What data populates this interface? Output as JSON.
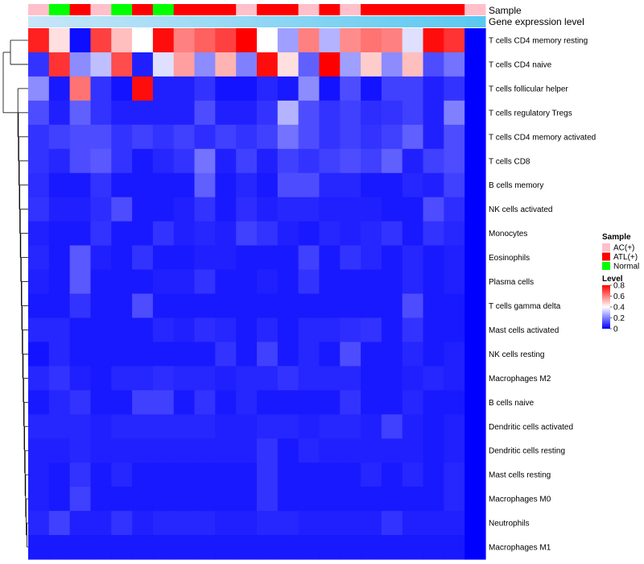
{
  "chart_data": {
    "type": "heatmap",
    "title": "",
    "annotation_labels": [
      "Sample",
      "Gene expression level"
    ],
    "samples": [
      "AC(+)",
      "Normal",
      "ATL(+)",
      "AC(+)",
      "Normal",
      "ATL(+)",
      "Normal",
      "ATL(+)",
      "ATL(+)",
      "ATL(+)",
      "AC(+)",
      "ATL(+)",
      "ATL(+)",
      "AC(+)",
      "ATL(+)",
      "AC(+)",
      "ATL(+)",
      "ATL(+)",
      "ATL(+)",
      "ATL(+)",
      "ATL(+)",
      "AC(+)"
    ],
    "sample_colors": {
      "AC(+)": "#ffc0cb",
      "ATL(+)": "#ff0000",
      "Normal": "#00ff00"
    },
    "expression_bar_colors": [
      "#c8e6f8",
      "#5ac8f0"
    ],
    "rows": [
      "T cells CD4 memory resting",
      "T cells CD4 naive",
      "T cells follicular helper",
      "T cells regulatory  Tregs",
      "T cells CD4 memory activated",
      "T cells CD8",
      "B cells memory",
      "NK cells activated",
      "Monocytes",
      "Eosinophils",
      "Plasma cells",
      "T cells gamma delta",
      "Mast cells activated",
      "NK cells resting",
      "Macrophages M2",
      "B cells naive",
      "Dendritic cells activated",
      "Dendritic cells resting",
      "Mast cells resting",
      "Macrophages M0",
      "Neutrophils",
      "Macrophages M1"
    ],
    "values": [
      [
        0.75,
        0.45,
        0.02,
        0.7,
        0.5,
        0.4,
        0.78,
        0.6,
        0.65,
        0.7,
        0.8,
        0.4,
        0.25,
        0.6,
        0.28,
        0.58,
        0.62,
        0.6,
        0.35,
        0.78,
        0.72,
        0.0
      ],
      [
        0.08,
        0.72,
        0.22,
        0.3,
        0.68,
        0.05,
        0.35,
        0.55,
        0.22,
        0.52,
        0.2,
        0.78,
        0.45,
        0.15,
        0.8,
        0.25,
        0.48,
        0.22,
        0.5,
        0.12,
        0.18,
        0.0
      ],
      [
        0.22,
        0.04,
        0.62,
        0.08,
        0.03,
        0.78,
        0.05,
        0.05,
        0.08,
        0.03,
        0.03,
        0.06,
        0.04,
        0.22,
        0.03,
        0.12,
        0.03,
        0.1,
        0.1,
        0.05,
        0.08,
        0.0
      ],
      [
        0.12,
        0.05,
        0.15,
        0.08,
        0.05,
        0.05,
        0.05,
        0.05,
        0.12,
        0.05,
        0.05,
        0.08,
        0.28,
        0.12,
        0.08,
        0.1,
        0.07,
        0.08,
        0.1,
        0.05,
        0.2,
        0.0
      ],
      [
        0.08,
        0.1,
        0.12,
        0.12,
        0.08,
        0.1,
        0.08,
        0.1,
        0.07,
        0.1,
        0.08,
        0.1,
        0.18,
        0.12,
        0.08,
        0.1,
        0.08,
        0.1,
        0.15,
        0.05,
        0.12,
        0.0
      ],
      [
        0.08,
        0.06,
        0.12,
        0.14,
        0.08,
        0.04,
        0.06,
        0.08,
        0.18,
        0.05,
        0.1,
        0.05,
        0.1,
        0.08,
        0.1,
        0.12,
        0.1,
        0.15,
        0.05,
        0.1,
        0.12,
        0.0
      ],
      [
        0.07,
        0.04,
        0.04,
        0.08,
        0.04,
        0.04,
        0.04,
        0.04,
        0.15,
        0.04,
        0.06,
        0.04,
        0.12,
        0.12,
        0.06,
        0.06,
        0.04,
        0.04,
        0.06,
        0.05,
        0.1,
        0.0
      ],
      [
        0.08,
        0.05,
        0.05,
        0.07,
        0.12,
        0.04,
        0.04,
        0.05,
        0.08,
        0.04,
        0.07,
        0.05,
        0.06,
        0.06,
        0.05,
        0.05,
        0.05,
        0.04,
        0.04,
        0.12,
        0.07,
        0.0
      ],
      [
        0.05,
        0.04,
        0.04,
        0.08,
        0.04,
        0.04,
        0.08,
        0.05,
        0.06,
        0.05,
        0.1,
        0.08,
        0.05,
        0.04,
        0.06,
        0.05,
        0.06,
        0.08,
        0.04,
        0.08,
        0.06,
        0.0
      ],
      [
        0.06,
        0.04,
        0.14,
        0.05,
        0.04,
        0.08,
        0.04,
        0.04,
        0.05,
        0.05,
        0.04,
        0.04,
        0.04,
        0.1,
        0.04,
        0.08,
        0.06,
        0.04,
        0.06,
        0.04,
        0.05,
        0.0
      ],
      [
        0.05,
        0.04,
        0.14,
        0.04,
        0.04,
        0.04,
        0.05,
        0.05,
        0.08,
        0.04,
        0.04,
        0.05,
        0.04,
        0.08,
        0.04,
        0.04,
        0.04,
        0.04,
        0.06,
        0.04,
        0.05,
        0.0
      ],
      [
        0.04,
        0.04,
        0.08,
        0.04,
        0.04,
        0.12,
        0.04,
        0.04,
        0.04,
        0.04,
        0.04,
        0.04,
        0.04,
        0.04,
        0.04,
        0.04,
        0.04,
        0.04,
        0.12,
        0.04,
        0.04,
        0.0
      ],
      [
        0.06,
        0.06,
        0.04,
        0.04,
        0.04,
        0.04,
        0.06,
        0.05,
        0.07,
        0.06,
        0.04,
        0.06,
        0.04,
        0.06,
        0.06,
        0.07,
        0.08,
        0.04,
        0.08,
        0.04,
        0.04,
        0.0
      ],
      [
        0.03,
        0.06,
        0.04,
        0.04,
        0.04,
        0.04,
        0.04,
        0.04,
        0.04,
        0.08,
        0.04,
        0.1,
        0.04,
        0.06,
        0.04,
        0.12,
        0.04,
        0.04,
        0.06,
        0.04,
        0.05,
        0.0
      ],
      [
        0.06,
        0.08,
        0.05,
        0.04,
        0.06,
        0.06,
        0.07,
        0.06,
        0.06,
        0.05,
        0.06,
        0.06,
        0.08,
        0.06,
        0.06,
        0.06,
        0.04,
        0.04,
        0.05,
        0.06,
        0.05,
        0.0
      ],
      [
        0.04,
        0.06,
        0.08,
        0.04,
        0.04,
        0.1,
        0.1,
        0.04,
        0.08,
        0.04,
        0.06,
        0.04,
        0.04,
        0.04,
        0.04,
        0.08,
        0.04,
        0.04,
        0.06,
        0.04,
        0.04,
        0.0
      ],
      [
        0.06,
        0.06,
        0.06,
        0.05,
        0.06,
        0.06,
        0.06,
        0.06,
        0.06,
        0.05,
        0.05,
        0.06,
        0.06,
        0.05,
        0.06,
        0.06,
        0.05,
        0.1,
        0.05,
        0.04,
        0.05,
        0.0
      ],
      [
        0.05,
        0.05,
        0.06,
        0.05,
        0.05,
        0.05,
        0.05,
        0.05,
        0.05,
        0.05,
        0.05,
        0.08,
        0.04,
        0.06,
        0.05,
        0.05,
        0.05,
        0.05,
        0.05,
        0.04,
        0.05,
        0.0
      ],
      [
        0.05,
        0.04,
        0.08,
        0.04,
        0.06,
        0.04,
        0.04,
        0.04,
        0.04,
        0.04,
        0.04,
        0.08,
        0.04,
        0.04,
        0.04,
        0.04,
        0.06,
        0.04,
        0.06,
        0.04,
        0.06,
        0.0
      ],
      [
        0.05,
        0.04,
        0.1,
        0.04,
        0.04,
        0.04,
        0.04,
        0.04,
        0.04,
        0.04,
        0.04,
        0.08,
        0.04,
        0.04,
        0.04,
        0.04,
        0.04,
        0.04,
        0.04,
        0.04,
        0.06,
        0.0
      ],
      [
        0.06,
        0.1,
        0.05,
        0.05,
        0.08,
        0.05,
        0.06,
        0.06,
        0.06,
        0.05,
        0.05,
        0.06,
        0.06,
        0.05,
        0.05,
        0.05,
        0.05,
        0.08,
        0.05,
        0.05,
        0.05,
        0.0
      ],
      [
        0.04,
        0.04,
        0.04,
        0.04,
        0.04,
        0.04,
        0.04,
        0.04,
        0.04,
        0.04,
        0.04,
        0.04,
        0.04,
        0.04,
        0.04,
        0.04,
        0.04,
        0.04,
        0.04,
        0.04,
        0.04,
        0.0
      ]
    ],
    "color_scale": {
      "min": 0,
      "max": 0.8,
      "low_color": "#0000ff",
      "mid_color": "#ffffff",
      "high_color": "#ff0000",
      "midpoint": 0.4
    },
    "legend": {
      "sample_title": "Sample",
      "sample_items": [
        {
          "label": "AC(+)",
          "color": "#ffc0cb"
        },
        {
          "label": "ATL(+)",
          "color": "#ff0000"
        },
        {
          "label": "Normal",
          "color": "#00ff00"
        }
      ],
      "level_title": "Level",
      "level_ticks": [
        "0.8",
        "0.6",
        "0.4",
        "0.2",
        "0"
      ],
      "level_tick_values": [
        0.8,
        0.6,
        0.4,
        0.2,
        0
      ]
    },
    "row_dendrogram": true
  }
}
